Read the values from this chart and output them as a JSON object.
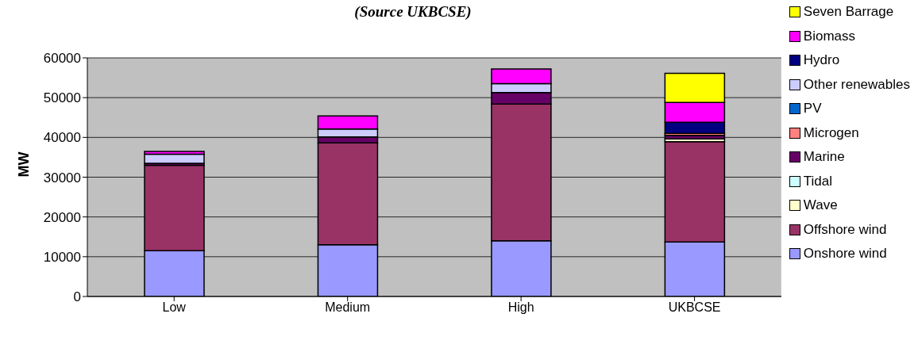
{
  "chart_data": {
    "type": "bar",
    "title": "(Source UKBCSE)",
    "ylabel": "MW",
    "categories": [
      "Low",
      "Medium",
      "High",
      "UKBCSE"
    ],
    "stacked": true,
    "series": [
      {
        "name": "Onshore wind",
        "color": "#9999ff",
        "values": [
          11500,
          13000,
          14000,
          13700
        ]
      },
      {
        "name": "Offshore wind",
        "color": "#993366",
        "values": [
          21500,
          25600,
          34400,
          25200
        ]
      },
      {
        "name": "Wave",
        "color": "#ffffcc",
        "values": [
          null,
          null,
          null,
          700
        ]
      },
      {
        "name": "Tidal",
        "color": "#ccffff",
        "values": [
          null,
          null,
          null,
          null
        ]
      },
      {
        "name": "Marine",
        "color": "#660066",
        "values": [
          500,
          1500,
          2900,
          900
        ]
      },
      {
        "name": "Microgen",
        "color": "#ff8080",
        "values": [
          null,
          null,
          null,
          500
        ]
      },
      {
        "name": "PV",
        "color": "#0066cc",
        "values": [
          null,
          null,
          null,
          null
        ]
      },
      {
        "name": "Other renewables",
        "color": "#ccccff",
        "values": [
          2300,
          2000,
          2200,
          null
        ]
      },
      {
        "name": "Hydro",
        "color": "#000080",
        "values": [
          null,
          null,
          null,
          2800
        ]
      },
      {
        "name": "Biomass",
        "color": "#ff00ff",
        "values": [
          700,
          3300,
          3700,
          5000
        ]
      },
      {
        "name": "Seven Barrage",
        "color": "#ffff00",
        "values": [
          null,
          null,
          null,
          7300
        ]
      }
    ],
    "ylim": [
      0,
      60000
    ],
    "yticks": [
      0,
      10000,
      20000,
      30000,
      40000,
      50000,
      60000
    ],
    "grid": "y",
    "legend": "right"
  }
}
